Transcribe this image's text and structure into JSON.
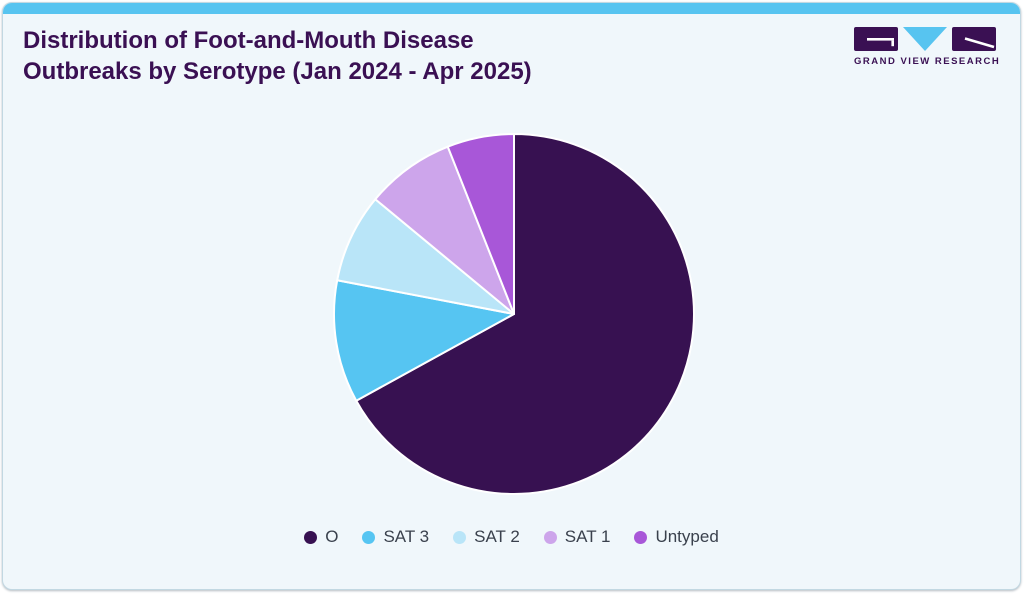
{
  "header": {
    "title_lines": [
      "Distribution of Foot-and-Mouth Disease",
      "Outbreaks by Serotype (Jan 2024 - Apr 2025)"
    ]
  },
  "logo": {
    "brand": "GRAND VIEW RESEARCH",
    "icon": "gvr-logo-icon"
  },
  "theme": {
    "page_background": "#ffffff",
    "card_background": "#f0f7fb",
    "card_border": "#c2d8e2",
    "accent_bar": "#57c4f0",
    "title_color": "#3a1053",
    "legend_text": "#3a414d"
  },
  "chart_data": {
    "type": "pie",
    "title": "Distribution of Foot-and-Mouth Disease Outbreaks by Serotype (Jan 2024 - Apr 2025)",
    "labels": [
      "O",
      "SAT 3",
      "SAT 2",
      "SAT 1",
      "Untyped"
    ],
    "values": [
      67,
      11,
      8,
      8,
      6
    ],
    "unit": "percent (estimated from slice angles; no data labels shown)",
    "colors": [
      "#371151",
      "#56c5f2",
      "#b9e5f8",
      "#cda5eb",
      "#a857d8"
    ],
    "start_angle_deg_from_top": 0,
    "direction": "clockwise",
    "slice_border_color": "#ffffff",
    "legend_position": "bottom",
    "data_labels_shown": false
  }
}
